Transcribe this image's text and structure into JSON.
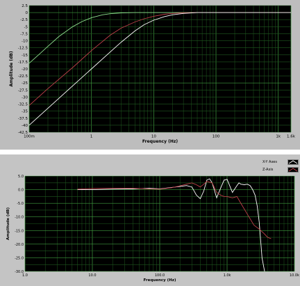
{
  "colors": {
    "panel": "#bdbdbd",
    "plot_bg": "#000000",
    "grid_major": "#3f9b3f",
    "grid_minor": "#1f5a1f",
    "line_white": "#ffffff",
    "line_red": "#c0404a",
    "line_green": "#8fe08f"
  },
  "chart_data": [
    {
      "type": "line",
      "xscale": "log",
      "xlim": [
        0.1,
        1600
      ],
      "ylim": [
        -42.5,
        2.5
      ],
      "xlabel": "Frequency (Hz)",
      "ylabel": "Amplitude (dB)",
      "x_ticks": [
        "100m",
        "1",
        "10",
        "100",
        "1k",
        "1.6k"
      ],
      "y_ticks": [
        "2.5",
        "0",
        "-2.5",
        "-5",
        "-7.5",
        "-10",
        "-12.5",
        "-15",
        "-17.5",
        "-20",
        "-22.5",
        "-25",
        "-27.5",
        "-30",
        "-32.5",
        "-35",
        "-37.5",
        "-40",
        "-42.5"
      ],
      "grid": true,
      "series": [
        {
          "color": "#8fe08f",
          "x": [
            0.1,
            0.15,
            0.2,
            0.3,
            0.5,
            0.7,
            1,
            1.5,
            2,
            3,
            5,
            10,
            50,
            1600
          ],
          "y": [
            -18,
            -14.5,
            -12,
            -8.5,
            -5,
            -3.2,
            -1.8,
            -0.8,
            -0.4,
            -0.1,
            0,
            0,
            0,
            0
          ]
        },
        {
          "color": "#c0404a",
          "x": [
            0.1,
            0.2,
            0.5,
            1,
            2,
            3,
            5,
            7,
            10,
            15,
            20,
            30,
            50,
            100,
            1600
          ],
          "y": [
            -33,
            -27,
            -19.5,
            -13.5,
            -8,
            -5.5,
            -3.3,
            -2.2,
            -1.3,
            -0.6,
            -0.3,
            -0.1,
            0,
            0,
            0
          ]
        },
        {
          "color": "#ffffff",
          "x": [
            0.1,
            0.2,
            0.5,
            1,
            2,
            3,
            5,
            7,
            10,
            15,
            20,
            30,
            50,
            100,
            1600
          ],
          "y": [
            -40,
            -34,
            -26,
            -20,
            -14,
            -10.5,
            -6.5,
            -4.3,
            -2.7,
            -1.4,
            -0.8,
            -0.3,
            0,
            0,
            0
          ]
        }
      ]
    },
    {
      "type": "line",
      "xscale": "log",
      "xlim": [
        1,
        10000
      ],
      "ylim": [
        -30,
        5
      ],
      "xlabel": "Frequency (Hz)",
      "ylabel": "Amplitude (dB)",
      "x_ticks": [
        "1.0",
        "10.0",
        "100.0",
        "1.0k",
        "10.0k"
      ],
      "y_ticks": [
        "5.0",
        "0.0",
        "-5.0",
        "-10.0",
        "-15.0",
        "-20.0",
        "-25.0",
        "-30.0"
      ],
      "grid": true,
      "legend_position": "top-right",
      "series": [
        {
          "name": "X-Y Axes",
          "color": "#ffffff",
          "x": [
            6,
            10,
            20,
            40,
            70,
            100,
            150,
            200,
            250,
            300,
            350,
            400,
            450,
            500,
            550,
            600,
            700,
            800,
            900,
            1000,
            1200,
            1400,
            1500,
            1600,
            1800,
            2000,
            2200,
            2400,
            2600,
            2800,
            3000,
            3300,
            3600
          ],
          "y": [
            0,
            0,
            0.2,
            0.3,
            0.5,
            0.3,
            0.8,
            1.2,
            1.5,
            1,
            -2,
            -3.3,
            -0.5,
            3.5,
            4,
            2.5,
            -3,
            0.5,
            3.5,
            3.8,
            -1,
            1.5,
            2.5,
            2,
            1.8,
            2,
            1.5,
            0,
            -2,
            -6,
            -12,
            -25,
            -30
          ]
        },
        {
          "name": "Z-Axis",
          "color": "#c0404a",
          "x": [
            6,
            10,
            20,
            40,
            70,
            100,
            150,
            200,
            250,
            300,
            350,
            400,
            450,
            500,
            600,
            700,
            800,
            900,
            1000,
            1200,
            1400,
            1600,
            2000,
            2500,
            3000,
            3500,
            4000,
            4500
          ],
          "y": [
            0.2,
            0.4,
            0.5,
            0.5,
            0.3,
            0.2,
            0.7,
            1.4,
            2,
            2.5,
            1.8,
            1,
            2,
            3,
            2.5,
            -1,
            -2,
            -2.5,
            -2.5,
            -3,
            -2.5,
            -5,
            -9,
            -13,
            -14.5,
            -16,
            -17.5,
            -18
          ]
        }
      ]
    }
  ]
}
